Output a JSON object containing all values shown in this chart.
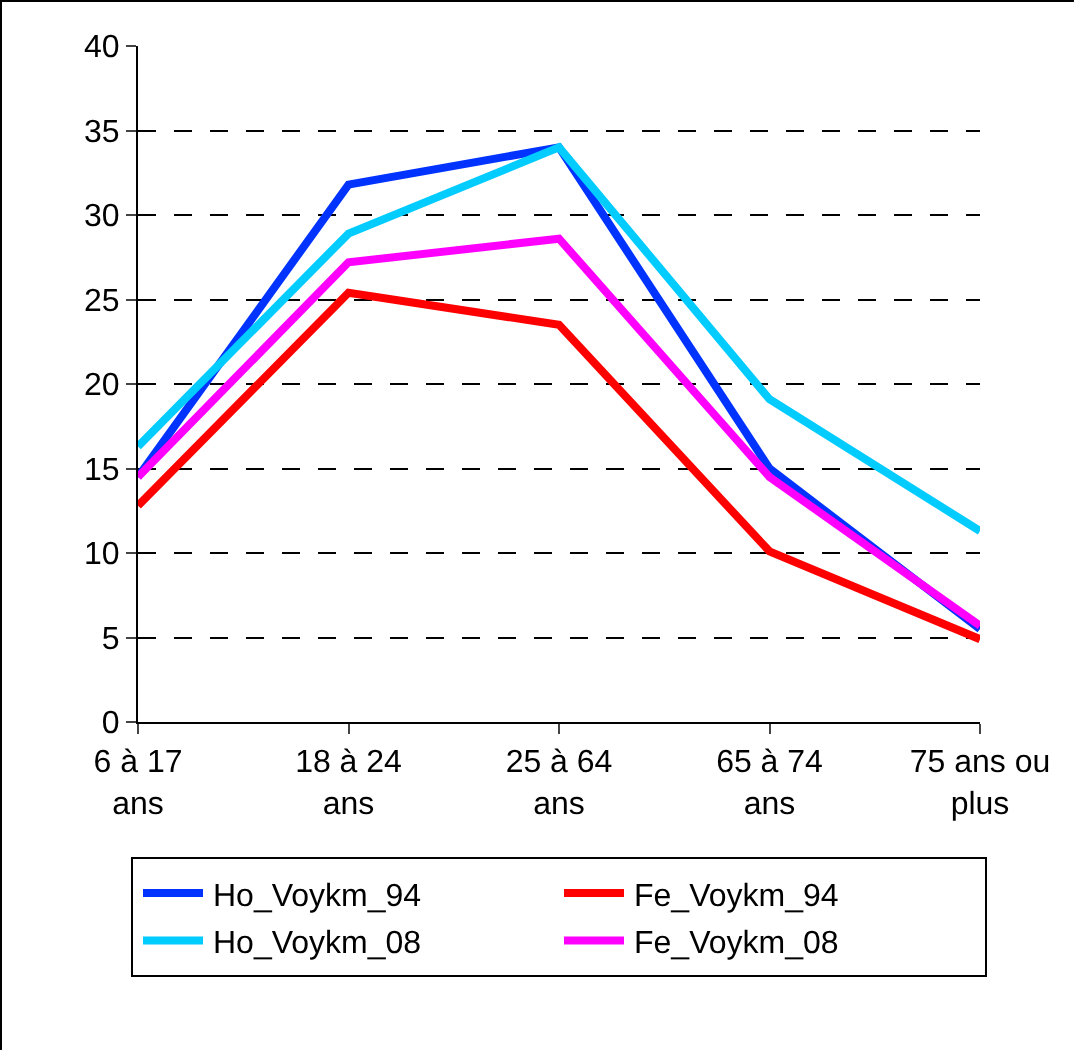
{
  "chart_data": {
    "type": "line",
    "categories": [
      "6 à 17\nans",
      "18 à 24\nans",
      "25 à 64\nans",
      "65 à 74\nans",
      "75 ans ou\nplus"
    ],
    "series": [
      {
        "name": "Ho_Voykm_94",
        "color": "#0033ff",
        "values": [
          14.5,
          31.8,
          34.0,
          15.0,
          5.5
        ]
      },
      {
        "name": "Fe_Voykm_94",
        "color": "#ff0000",
        "values": [
          12.8,
          25.4,
          23.5,
          10.1,
          4.9
        ]
      },
      {
        "name": "Ho_Voykm_08",
        "color": "#00ccff",
        "values": [
          16.3,
          28.9,
          34.0,
          19.1,
          11.3
        ]
      },
      {
        "name": "Fe_Voykm_08",
        "color": "#ff00ff",
        "values": [
          14.5,
          27.2,
          28.6,
          14.5,
          5.7
        ]
      }
    ],
    "ylim": [
      0,
      40
    ],
    "yticks": [
      0,
      5,
      10,
      15,
      20,
      25,
      30,
      35,
      40
    ],
    "grid": "y",
    "legend": "bottom",
    "marker": "none",
    "line_style": "solid"
  }
}
